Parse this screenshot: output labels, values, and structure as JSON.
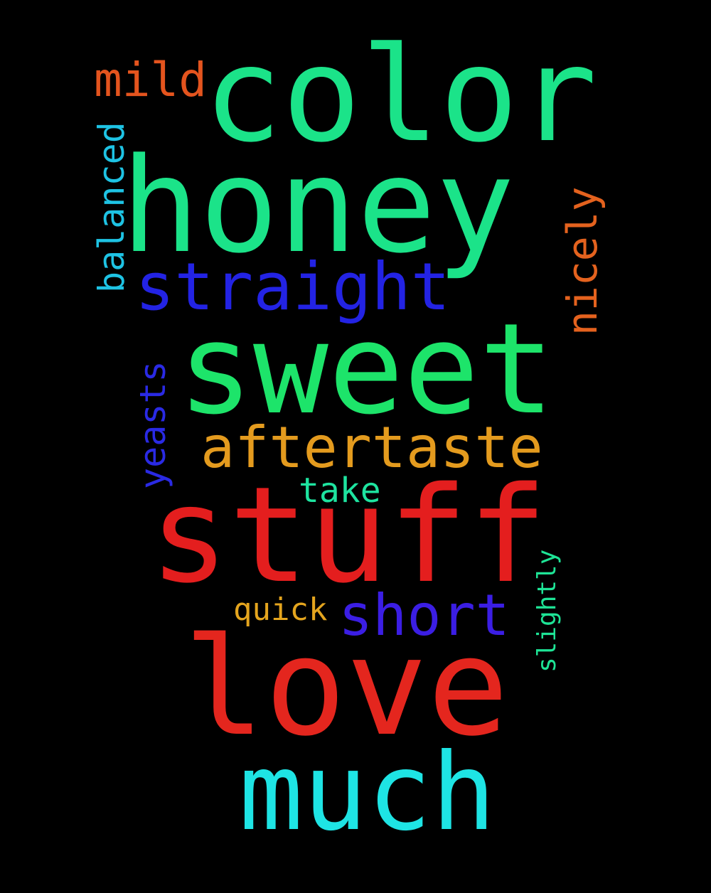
{
  "words": {
    "color": {
      "text": "color",
      "color": "#1be389"
    },
    "honey": {
      "text": "honey",
      "color": "#1be389"
    },
    "sweet": {
      "text": "sweet",
      "color": "#1de46a"
    },
    "stuff": {
      "text": "stuff",
      "color": "#e41e1e"
    },
    "love": {
      "text": "love",
      "color": "#e4261e"
    },
    "much": {
      "text": "much",
      "color": "#1ee4e4"
    },
    "straight": {
      "text": "straight",
      "color": "#2323e4"
    },
    "aftertaste": {
      "text": "aftertaste",
      "color": "#e49b1e"
    },
    "short": {
      "text": "short",
      "color": "#3b1ee4"
    },
    "mild": {
      "text": "mild",
      "color": "#e4541e"
    },
    "take": {
      "text": "take",
      "color": "#1ee4a0"
    },
    "quick": {
      "text": "quick",
      "color": "#e4a51e"
    },
    "balanced": {
      "text": "balanced",
      "color": "#1ec3e4"
    },
    "nicely": {
      "text": "nicely",
      "color": "#e4621e"
    },
    "yeasts": {
      "text": "yeasts",
      "color": "#2a2ae4"
    },
    "slightly": {
      "text": "slightly",
      "color": "#1ee496"
    }
  }
}
